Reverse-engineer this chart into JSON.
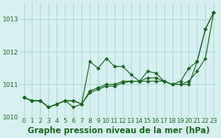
{
  "xlabel": "Graphe pression niveau de la mer (hPa)",
  "background_color": "#d6f0f0",
  "grid_color": "#b0d8d8",
  "line_color": "#1a6620",
  "marker_color": "#1a6620",
  "x": [
    0,
    1,
    2,
    3,
    4,
    5,
    6,
    7,
    8,
    9,
    10,
    11,
    12,
    13,
    14,
    15,
    16,
    17,
    18,
    19,
    20,
    21,
    22,
    23
  ],
  "series1": [
    1010.6,
    1010.5,
    1010.5,
    1010.3,
    1010.4,
    1010.5,
    1010.5,
    1010.4,
    1010.8,
    1010.9,
    1011.0,
    1011.0,
    1011.1,
    1011.1,
    1011.1,
    1011.2,
    1011.2,
    1011.1,
    1011.0,
    1011.0,
    1011.0,
    1011.7,
    1012.7,
    1013.2
  ],
  "series2": [
    1010.6,
    1010.5,
    1010.5,
    1010.3,
    1010.4,
    1010.5,
    1010.5,
    1010.4,
    1011.7,
    1011.5,
    1011.8,
    1011.55,
    1011.55,
    1011.3,
    1011.1,
    1011.4,
    1011.35,
    1011.1,
    1011.0,
    1011.1,
    1011.5,
    1011.7,
    1012.7,
    1013.2
  ],
  "series3": [
    1010.6,
    1010.5,
    1010.5,
    1010.3,
    1010.4,
    1010.5,
    1010.3,
    1010.4,
    1010.75,
    1010.85,
    1010.95,
    1010.95,
    1011.05,
    1011.1,
    1011.1,
    1011.1,
    1011.1,
    1011.1,
    1011.0,
    1011.0,
    1011.1,
    1011.4,
    1011.8,
    1013.2
  ],
  "ylim": [
    1010.0,
    1013.5
  ],
  "yticks": [
    1010,
    1011,
    1012,
    1013
  ],
  "xticks": [
    0,
    1,
    2,
    3,
    4,
    5,
    6,
    7,
    8,
    9,
    10,
    11,
    12,
    13,
    14,
    15,
    16,
    17,
    18,
    19,
    20,
    21,
    22,
    23
  ],
  "tick_fontsize": 6.5,
  "xlabel_fontsize": 8.5
}
